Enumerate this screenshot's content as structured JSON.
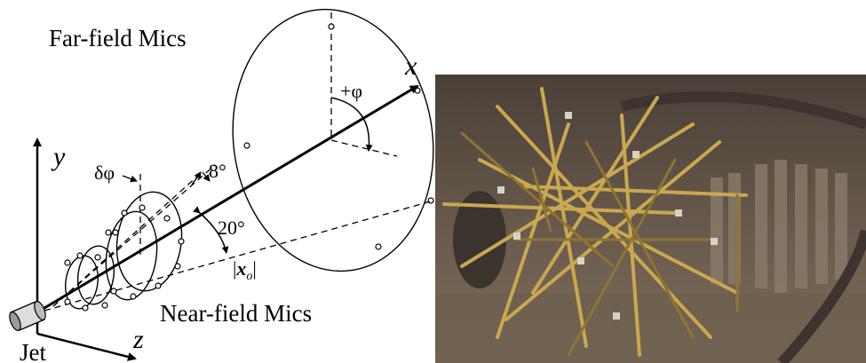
{
  "figure": {
    "far_field_label": "Far-field Mics",
    "near_field_label": "Near-field Mics",
    "jet_label": "Jet",
    "axes": {
      "x": "x",
      "y": "y",
      "z": "z"
    },
    "angles": {
      "phi": "+φ",
      "delta_phi": "δφ",
      "ring_spacing": "8°",
      "polar": "20°"
    },
    "distance": [
      "|",
      "x",
      "o",
      "|"
    ]
  }
}
